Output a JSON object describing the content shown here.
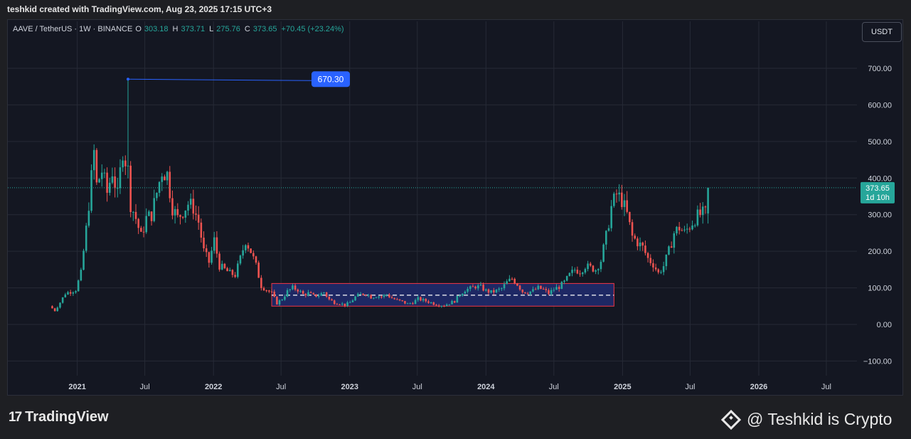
{
  "header": {
    "title": "teshkid created with TradingView.com, Aug 23, 2025 17:15 UTC+3"
  },
  "legend": {
    "symbol": "AAVE / TetherUS · 1W · BINANCE",
    "o_label": "O",
    "o": "303.18",
    "h_label": "H",
    "h": "373.71",
    "l_label": "L",
    "l": "275.76",
    "c_label": "C",
    "c": "373.65",
    "change": "+70.45 (+23.24%)"
  },
  "currency_button": "USDT",
  "colors": {
    "up": "#26a69a",
    "down": "#ef5350",
    "price_line": "#26a69a",
    "highlight_box_fill": "#1f2a6b",
    "highlight_box_border": "#f23645",
    "callout": "#2962ff",
    "grid": "#262a36",
    "axis_text": "#cfd3dc"
  },
  "price_tag": {
    "value": "373.65",
    "countdown": "1d 10h"
  },
  "callout": {
    "value": "670.30"
  },
  "chart_data": {
    "type": "candlestick",
    "title": "",
    "yaxis": {
      "ticks": [
        700,
        600,
        500,
        400,
        300,
        200,
        100,
        0,
        -100
      ],
      "tick_labels": [
        "700.00",
        "600.00",
        "500.00",
        "400.00",
        "300.00",
        "200.00",
        "100.00",
        "0.00",
        "−100.00"
      ],
      "range": [
        -140,
        770
      ],
      "position": "right"
    },
    "xaxis": {
      "range": [
        "2020-06-29",
        "2026-09-21"
      ],
      "ticks": [
        {
          "date": "2021-01-01",
          "label": "2021"
        },
        {
          "date": "2021-07-01",
          "label": "Jul"
        },
        {
          "date": "2022-01-01",
          "label": "2022"
        },
        {
          "date": "2022-07-01",
          "label": "Jul"
        },
        {
          "date": "2023-01-01",
          "label": "2023"
        },
        {
          "date": "2023-07-01",
          "label": "Jul"
        },
        {
          "date": "2024-01-01",
          "label": "2024"
        },
        {
          "date": "2024-07-01",
          "label": "Jul"
        },
        {
          "date": "2025-01-01",
          "label": "2025"
        },
        {
          "date": "2025-07-01",
          "label": "Jul"
        },
        {
          "date": "2026-01-01",
          "label": "2026"
        },
        {
          "date": "2026-07-01",
          "label": "Jul"
        }
      ]
    },
    "grid": true,
    "last_price": 373.65,
    "all_time_high": {
      "date": "2021-05-17",
      "price": 670.3
    },
    "range_box": {
      "x_start": "2022-06-06",
      "x_end": "2024-12-09",
      "y_low": 50,
      "y_high": 112,
      "mid": 80
    },
    "price_path": [
      [
        "2020-10-19",
        50
      ],
      [
        "2020-11-02",
        38
      ],
      [
        "2020-11-16",
        60
      ],
      [
        "2020-11-30",
        85
      ],
      [
        "2020-12-14",
        90
      ],
      [
        "2020-12-28",
        95
      ],
      [
        "2021-01-11",
        140
      ],
      [
        "2021-01-25",
        260
      ],
      [
        "2021-02-08",
        400
      ],
      [
        "2021-02-15",
        470
      ],
      [
        "2021-02-22",
        380
      ],
      [
        "2021-03-08",
        420
      ],
      [
        "2021-03-22",
        360
      ],
      [
        "2021-04-05",
        420
      ],
      [
        "2021-04-19",
        350
      ],
      [
        "2021-05-03",
        480
      ],
      [
        "2021-05-17",
        420
      ],
      [
        "2021-05-24",
        330
      ],
      [
        "2021-06-07",
        290
      ],
      [
        "2021-06-21",
        240
      ],
      [
        "2021-07-05",
        290
      ],
      [
        "2021-07-19",
        300
      ],
      [
        "2021-08-02",
        360
      ],
      [
        "2021-08-16",
        420
      ],
      [
        "2021-08-30",
        410
      ],
      [
        "2021-09-13",
        320
      ],
      [
        "2021-09-27",
        290
      ],
      [
        "2021-10-11",
        310
      ],
      [
        "2021-10-25",
        330
      ],
      [
        "2021-11-08",
        320
      ],
      [
        "2021-11-22",
        280
      ],
      [
        "2021-12-06",
        200
      ],
      [
        "2021-12-20",
        170
      ],
      [
        "2022-01-03",
        230
      ],
      [
        "2022-01-17",
        160
      ],
      [
        "2022-01-31",
        150
      ],
      [
        "2022-02-14",
        140
      ],
      [
        "2022-02-28",
        135
      ],
      [
        "2022-03-14",
        180
      ],
      [
        "2022-03-28",
        230
      ],
      [
        "2022-04-11",
        200
      ],
      [
        "2022-04-25",
        160
      ],
      [
        "2022-05-09",
        105
      ],
      [
        "2022-05-23",
        95
      ],
      [
        "2022-06-06",
        85
      ],
      [
        "2022-06-20",
        58
      ],
      [
        "2022-07-04",
        70
      ],
      [
        "2022-07-18",
        90
      ],
      [
        "2022-08-01",
        100
      ],
      [
        "2022-08-15",
        95
      ],
      [
        "2022-08-29",
        82
      ],
      [
        "2022-09-12",
        85
      ],
      [
        "2022-09-26",
        78
      ],
      [
        "2022-10-10",
        80
      ],
      [
        "2022-10-24",
        88
      ],
      [
        "2022-11-07",
        68
      ],
      [
        "2022-11-21",
        60
      ],
      [
        "2022-12-05",
        58
      ],
      [
        "2022-12-19",
        53
      ],
      [
        "2023-01-02",
        60
      ],
      [
        "2023-01-16",
        75
      ],
      [
        "2023-01-30",
        82
      ],
      [
        "2023-02-13",
        85
      ],
      [
        "2023-02-27",
        75
      ],
      [
        "2023-03-13",
        78
      ],
      [
        "2023-03-27",
        76
      ],
      [
        "2023-04-10",
        82
      ],
      [
        "2023-04-24",
        72
      ],
      [
        "2023-05-08",
        66
      ],
      [
        "2023-05-22",
        62
      ],
      [
        "2023-06-05",
        56
      ],
      [
        "2023-06-19",
        60
      ],
      [
        "2023-07-03",
        70
      ],
      [
        "2023-07-17",
        66
      ],
      [
        "2023-07-31",
        62
      ],
      [
        "2023-08-14",
        57
      ],
      [
        "2023-08-28",
        53
      ],
      [
        "2023-09-11",
        52
      ],
      [
        "2023-09-25",
        58
      ],
      [
        "2023-10-09",
        64
      ],
      [
        "2023-10-23",
        82
      ],
      [
        "2023-11-06",
        95
      ],
      [
        "2023-11-20",
        98
      ],
      [
        "2023-12-04",
        104
      ],
      [
        "2023-12-18",
        102
      ],
      [
        "2024-01-01",
        92
      ],
      [
        "2024-01-15",
        88
      ],
      [
        "2024-01-29",
        92
      ],
      [
        "2024-02-12",
        98
      ],
      [
        "2024-02-26",
        115
      ],
      [
        "2024-03-11",
        125
      ],
      [
        "2024-03-25",
        110
      ],
      [
        "2024-04-08",
        90
      ],
      [
        "2024-04-22",
        88
      ],
      [
        "2024-05-06",
        92
      ],
      [
        "2024-05-20",
        100
      ],
      [
        "2024-06-03",
        95
      ],
      [
        "2024-06-17",
        85
      ],
      [
        "2024-07-01",
        96
      ],
      [
        "2024-07-15",
        103
      ],
      [
        "2024-07-29",
        115
      ],
      [
        "2024-08-12",
        135
      ],
      [
        "2024-08-26",
        150
      ],
      [
        "2024-09-09",
        145
      ],
      [
        "2024-09-23",
        160
      ],
      [
        "2024-10-07",
        155
      ],
      [
        "2024-10-21",
        150
      ],
      [
        "2024-11-04",
        175
      ],
      [
        "2024-11-18",
        240
      ],
      [
        "2024-12-02",
        320
      ],
      [
        "2024-12-16",
        355
      ],
      [
        "2024-12-30",
        340
      ],
      [
        "2025-01-13",
        300
      ],
      [
        "2025-01-27",
        240
      ],
      [
        "2025-02-10",
        225
      ],
      [
        "2025-02-24",
        210
      ],
      [
        "2025-03-10",
        180
      ],
      [
        "2025-03-24",
        165
      ],
      [
        "2025-04-07",
        140
      ],
      [
        "2025-04-21",
        160
      ],
      [
        "2025-05-05",
        200
      ],
      [
        "2025-05-19",
        250
      ],
      [
        "2025-06-02",
        265
      ],
      [
        "2025-06-16",
        250
      ],
      [
        "2025-06-30",
        270
      ],
      [
        "2025-07-14",
        290
      ],
      [
        "2025-07-28",
        300
      ],
      [
        "2025-08-11",
        303
      ],
      [
        "2025-08-18",
        373.65
      ]
    ]
  }
}
